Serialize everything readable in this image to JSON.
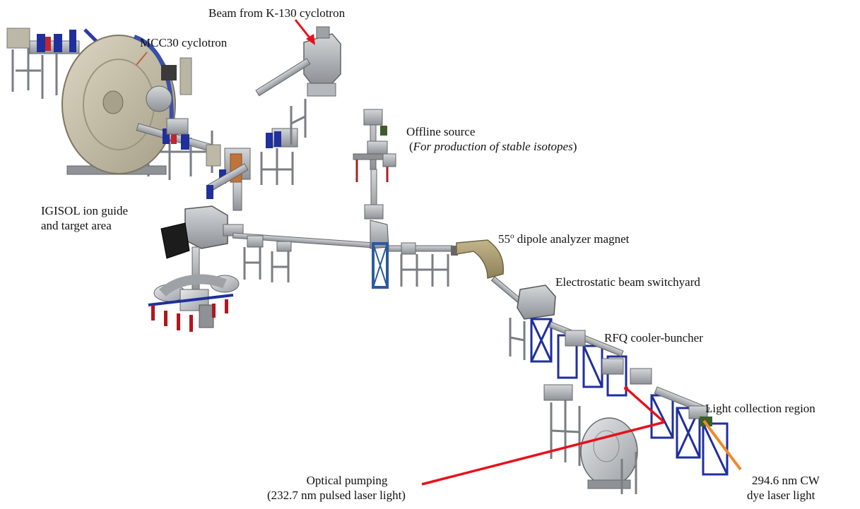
{
  "labels": {
    "beam_k130": "Beam from K-130 cyclotron",
    "mcc30": "MCC30 cyclotron",
    "offline_line1": "Offline source",
    "offline_line2_open": "(",
    "offline_line2_italic": "For production of  stable isotopes",
    "offline_line2_close": ")",
    "igisol_line1": "IGISOL ion guide",
    "igisol_line2": "and target area",
    "dipole_number": "55",
    "dipole_degree": "o",
    "dipole_rest": " dipole analyzer magnet",
    "switchyard": "Electrostatic beam switchyard",
    "rfq": "RFQ cooler-buncher",
    "light_collection": "Light collection region",
    "optical_line1": "Optical pumping",
    "optical_line2": "(232.7 nm pulsed laser light)",
    "cw_line1": "294.6 nm CW",
    "cw_line2": "dye laser light"
  },
  "colors": {
    "red_laser": "#e8101a",
    "orange_laser": "#f08a2a",
    "steel": "#a9adb2",
    "dark_steel": "#6d7176",
    "blue_frame": "#1f2f9c",
    "cyclotron_body": "#c9c2ae",
    "dipole": "#a89a70",
    "copper": "#c0743a"
  }
}
